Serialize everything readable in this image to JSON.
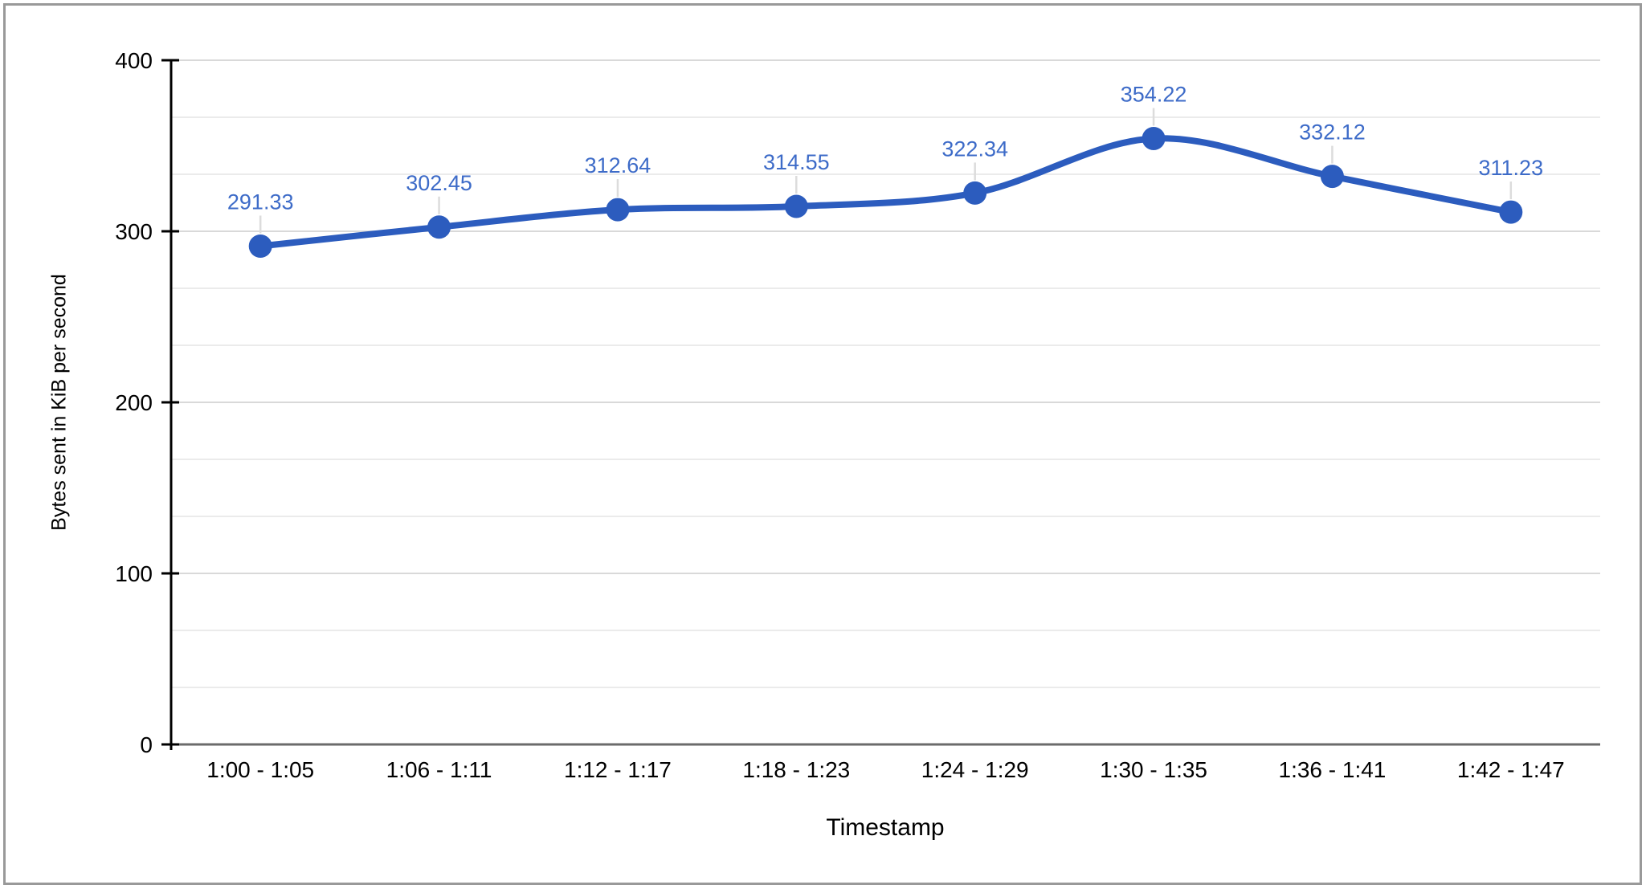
{
  "chart_data": {
    "type": "line",
    "smooth": true,
    "categories": [
      "1:00 - 1:05",
      "1:06 - 1:11",
      "1:12 - 1:17",
      "1:18 - 1:23",
      "1:24 - 1:29",
      "1:30 - 1:35",
      "1:36 - 1:41",
      "1:42 - 1:47"
    ],
    "values": [
      291.33,
      302.45,
      312.64,
      314.55,
      322.34,
      354.22,
      332.12,
      311.23
    ],
    "point_labels": [
      "291.33",
      "302.45",
      "312.64",
      "314.55",
      "322.34",
      "354.22",
      "332.12",
      "311.23"
    ],
    "title": "",
    "xlabel": "Timestamp",
    "ylabel": "Bytes sent in KiB per second",
    "ylim": [
      0,
      400
    ],
    "y_major_tick_step": 100,
    "y_tick_labels": [
      "0",
      "100",
      "200",
      "300",
      "400"
    ],
    "minor_gridlines_between_majors": 2,
    "grid": true,
    "legend_position": "none",
    "colors": {
      "series": "#2c5cbe",
      "point_label": "#3d6bc8",
      "label_stem": "#dcdcdc",
      "gridline_major": "#d9d9d9",
      "gridline_minor": "#ebebeb",
      "baseline": "#6b6b6b",
      "axis_line": "#000000",
      "tick_text": "#000000",
      "axis_title_text": "#000000",
      "background": "#ffffff",
      "frame_border": "#999999"
    }
  }
}
